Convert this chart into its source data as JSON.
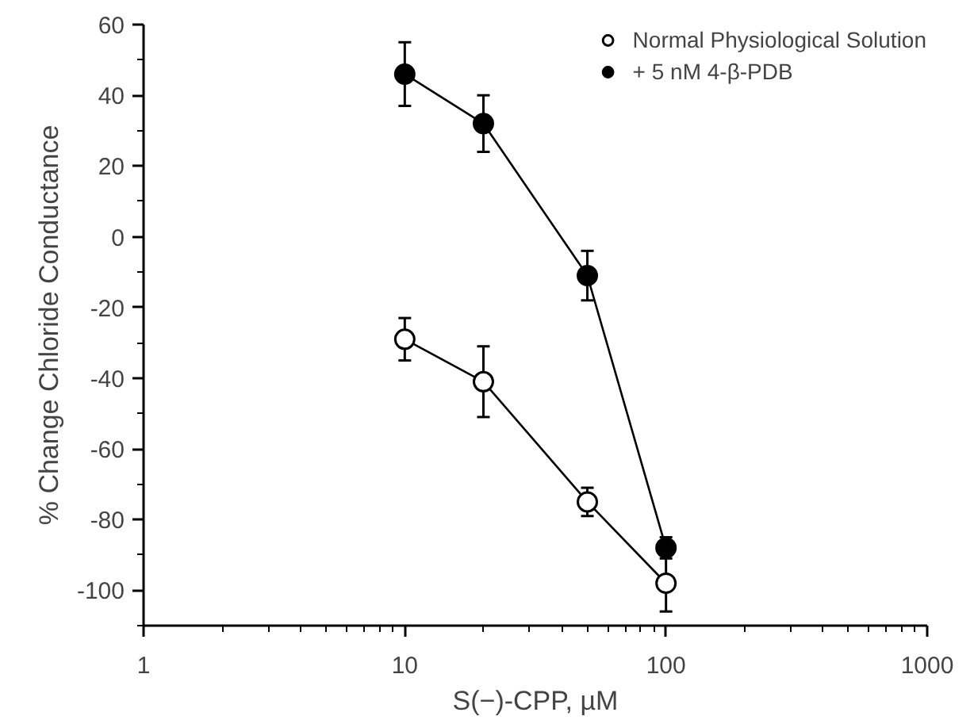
{
  "chart_data": {
    "type": "line",
    "xlabel": "S(−)-CPP, µM",
    "ylabel": "% Change Chloride Conductance",
    "log": "x",
    "xlim": [
      1,
      1000
    ],
    "xticks": [
      1,
      10,
      100,
      1000
    ],
    "ylim": [
      -110,
      60
    ],
    "yticks": [
      -100,
      -80,
      -60,
      -40,
      -20,
      0,
      20,
      40,
      60
    ],
    "grid": false,
    "legend": "top right",
    "marker": "circle",
    "line_style": "solid",
    "series": [
      {
        "name": "Normal Physiological Solution",
        "color": "#ffffff",
        "x": [
          10,
          20,
          50,
          100
        ],
        "values": [
          -29,
          -41,
          -75,
          -98
        ],
        "errors": [
          6,
          10,
          4,
          8
        ]
      },
      {
        "name": "+ 5 nM 4-β-PDB",
        "color": "#000000",
        "x": [
          10,
          20,
          50,
          100
        ],
        "values": [
          46,
          32,
          -11,
          -88
        ],
        "errors": [
          9,
          8,
          7,
          3
        ]
      }
    ]
  }
}
